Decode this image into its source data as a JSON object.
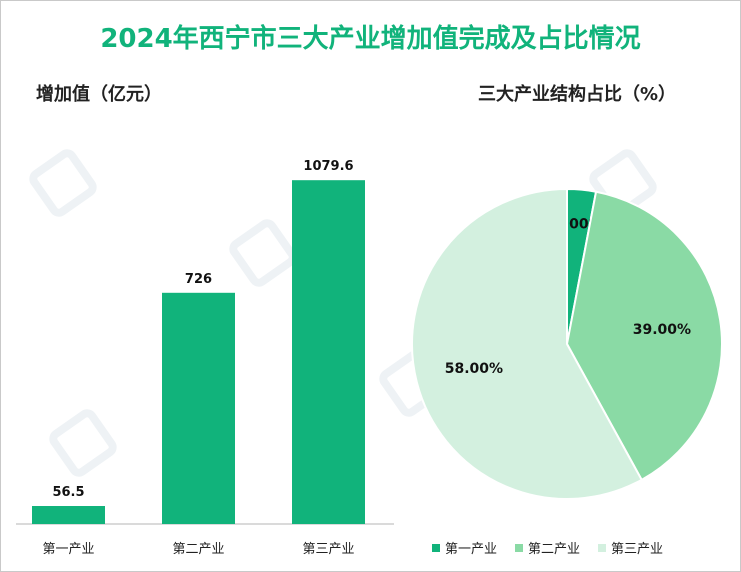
{
  "title": "2024年西宁市三大产业增加值完成及占比情况",
  "colors": {
    "title": "#11b37b",
    "primary": "#11b37b",
    "secondary": "#8adaa5",
    "tertiary": "#d3f0df"
  },
  "chart_data": [
    {
      "type": "bar",
      "title": "",
      "ylabel": "增加值（亿元）",
      "xlabel": "",
      "categories": [
        "第一产业",
        "第二产业",
        "第三产业"
      ],
      "values": [
        56.5,
        726,
        1079.6
      ],
      "value_labels": [
        "56.5",
        "726",
        "1079.6"
      ],
      "ylim": [
        0,
        1300
      ],
      "grid": false
    },
    {
      "type": "pie",
      "title": "三大产业结构占比（%）",
      "categories": [
        "第一产业",
        "第二产业",
        "第三产业"
      ],
      "values": [
        3.0,
        39.0,
        58.0
      ],
      "value_labels": [
        "3.00%",
        "39.00%",
        "58.00%"
      ],
      "legend_position": "bottom"
    }
  ]
}
